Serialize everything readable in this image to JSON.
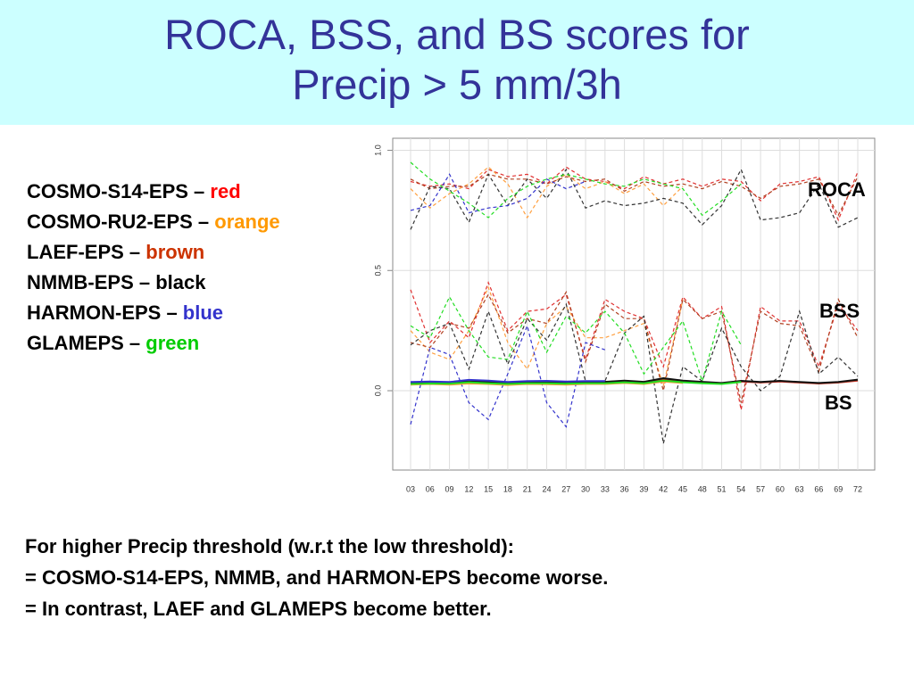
{
  "title": [
    "ROCA, BSS, and BS scores for",
    "Precip > 5 mm/3h"
  ],
  "legend": [
    {
      "label": "COSMO-S14-EPS – ",
      "color_word": "red",
      "color": "#ff0000"
    },
    {
      "label": "COSMO-RU2-EPS – ",
      "color_word": "orange",
      "color": "#ff9900"
    },
    {
      "label": "LAEF-EPS – ",
      "color_word": "brown",
      "color": "#cc3300"
    },
    {
      "label": "NMMB-EPS – black",
      "color_word": "",
      "color": "#000000"
    },
    {
      "label": "HARMON-EPS – ",
      "color_word": "blue",
      "color": "#3333cc"
    },
    {
      "label": "GLAMEPS – ",
      "color_word": "green",
      "color": "#00cc00"
    }
  ],
  "notes": [
    "For higher Precip threshold (w.r.t the low threshold):",
    "= COSMO-S14-EPS, NMMB, and HARMON-EPS become worse.",
    "= In contrast, LAEF and GLAMEPS become better."
  ],
  "chart_data": {
    "type": "line",
    "categories": [
      "03",
      "06",
      "09",
      "12",
      "15",
      "18",
      "21",
      "24",
      "27",
      "30",
      "33",
      "36",
      "39",
      "42",
      "45",
      "48",
      "51",
      "54",
      "57",
      "60",
      "63",
      "66",
      "69",
      "72"
    ],
    "ylim": [
      -0.33,
      1.05
    ],
    "yticks": [
      {
        "value": 0,
        "label": "0.0"
      },
      {
        "value": 0.5,
        "label": "0.5"
      },
      {
        "value": 1,
        "label": "1.0"
      }
    ],
    "grid": true,
    "groups": [
      {
        "label": "ROCA",
        "dashed": true,
        "series": [
          {
            "color": "#e03030",
            "values": [
              0.87,
              0.85,
              0.86,
              0.84,
              0.92,
              0.89,
              0.9,
              0.86,
              0.93,
              0.88,
              0.87,
              0.84,
              0.89,
              0.86,
              0.88,
              0.85,
              0.88,
              0.87,
              0.79,
              0.86,
              0.87,
              0.89,
              0.71,
              0.91
            ]
          },
          {
            "color": "#ffa040",
            "values": [
              0.84,
              0.76,
              0.82,
              0.86,
              0.93,
              0.86,
              0.72,
              0.85,
              0.9,
              0.84,
              0.87,
              0.82,
              0.86,
              0.77,
              0.85,
              null,
              null,
              null,
              null,
              null,
              null,
              null,
              null,
              null
            ]
          },
          {
            "color": "#b04020",
            "values": [
              0.88,
              0.84,
              0.85,
              0.85,
              0.9,
              0.88,
              0.88,
              0.86,
              0.89,
              0.87,
              0.88,
              0.83,
              0.87,
              0.85,
              0.86,
              0.84,
              0.87,
              0.85,
              0.8,
              0.85,
              0.86,
              0.88,
              0.73,
              0.89
            ]
          },
          {
            "color": "#333333",
            "values": [
              0.67,
              0.85,
              0.84,
              0.7,
              0.9,
              0.77,
              0.88,
              0.8,
              0.92,
              0.76,
              0.79,
              0.77,
              0.78,
              0.8,
              0.78,
              0.69,
              0.77,
              0.92,
              0.71,
              0.72,
              0.74,
              0.86,
              0.68,
              0.72
            ]
          },
          {
            "color": "#3333cc",
            "values": [
              0.75,
              0.77,
              0.9,
              0.74,
              0.76,
              0.77,
              0.8,
              0.88,
              0.84,
              0.87,
              null,
              null,
              null,
              null,
              null,
              null,
              null,
              null,
              null,
              null,
              null,
              null,
              null,
              null
            ]
          },
          {
            "color": "#22dd22",
            "values": [
              0.95,
              0.88,
              0.83,
              0.78,
              0.72,
              0.8,
              0.85,
              0.88,
              0.9,
              0.88,
              0.86,
              0.85,
              0.88,
              0.86,
              0.84,
              0.73,
              0.79,
              0.86,
              null,
              null,
              null,
              null,
              null,
              null
            ]
          }
        ]
      },
      {
        "label": "BSS",
        "dashed": true,
        "series": [
          {
            "color": "#e03030",
            "values": [
              0.42,
              0.2,
              0.29,
              0.22,
              0.45,
              0.25,
              0.33,
              0.34,
              0.4,
              0.13,
              0.38,
              0.33,
              0.3,
              0.1,
              0.39,
              0.3,
              0.35,
              -0.08,
              0.35,
              0.29,
              0.29,
              0.1,
              0.36,
              0.25
            ]
          },
          {
            "color": "#ffa040",
            "values": [
              0.25,
              0.16,
              0.13,
              0.25,
              0.43,
              0.2,
              0.09,
              0.28,
              0.35,
              0.22,
              0.22,
              0.25,
              0.28,
              0.02,
              0.38,
              null,
              null,
              null,
              null,
              null,
              null,
              null,
              null,
              null
            ]
          },
          {
            "color": "#b04020",
            "values": [
              0.2,
              0.18,
              0.28,
              0.26,
              0.4,
              0.24,
              0.3,
              0.28,
              0.41,
              0.12,
              0.36,
              0.3,
              0.3,
              0.0,
              0.38,
              0.3,
              0.33,
              -0.05,
              0.33,
              0.28,
              0.27,
              0.08,
              0.38,
              0.22
            ]
          },
          {
            "color": "#333333",
            "values": [
              0.19,
              0.25,
              0.28,
              0.09,
              0.33,
              0.11,
              0.3,
              0.21,
              0.36,
              0.04,
              0.04,
              0.24,
              0.31,
              -0.22,
              0.1,
              0.04,
              0.26,
              0.1,
              0.0,
              0.06,
              0.33,
              0.07,
              0.14,
              0.06
            ]
          },
          {
            "color": "#3333cc",
            "values": [
              -0.14,
              0.18,
              0.15,
              -0.05,
              -0.12,
              0.07,
              0.27,
              -0.05,
              -0.15,
              0.2,
              0.17,
              null,
              null,
              null,
              null,
              null,
              null,
              null,
              null,
              null,
              null,
              null,
              null,
              null
            ]
          },
          {
            "color": "#22dd22",
            "values": [
              0.27,
              0.22,
              0.39,
              0.25,
              0.14,
              0.13,
              0.33,
              0.16,
              0.31,
              0.24,
              0.33,
              0.24,
              0.07,
              0.18,
              0.29,
              0.04,
              0.33,
              0.19,
              null,
              null,
              null,
              null,
              null,
              null
            ]
          }
        ]
      },
      {
        "label": "BS",
        "dashed": false,
        "series": [
          {
            "color": "#e03030",
            "values": [
              0.03,
              0.032,
              0.03,
              0.038,
              0.034,
              0.03,
              0.033,
              0.034,
              0.031,
              0.034,
              0.034,
              0.038,
              0.034,
              0.045,
              0.038,
              0.034,
              0.03,
              0.038,
              0.034,
              0.038,
              0.034,
              0.03,
              0.034,
              0.042
            ]
          },
          {
            "color": "#ffa040",
            "values": [
              0.025,
              0.028,
              0.025,
              0.03,
              0.028,
              0.024,
              0.028,
              0.027,
              0.025,
              0.028,
              0.028,
              0.032,
              0.028,
              0.038,
              0.032,
              null,
              null,
              null,
              null,
              null,
              null,
              null,
              null,
              null
            ]
          },
          {
            "color": "#b04020",
            "values": [
              0.032,
              0.034,
              0.031,
              0.04,
              0.036,
              0.031,
              0.035,
              0.035,
              0.032,
              0.035,
              0.036,
              0.04,
              0.035,
              0.048,
              0.04,
              0.035,
              0.031,
              0.04,
              0.035,
              0.04,
              0.035,
              0.031,
              0.035,
              0.044
            ]
          },
          {
            "color": "#111111",
            "values": [
              0.034,
              0.036,
              0.033,
              0.042,
              0.037,
              0.033,
              0.036,
              0.037,
              0.034,
              0.037,
              0.037,
              0.042,
              0.037,
              0.052,
              0.042,
              0.037,
              0.032,
              0.041,
              0.036,
              0.041,
              0.036,
              0.032,
              0.036,
              0.046
            ]
          },
          {
            "color": "#3333cc",
            "values": [
              0.036,
              0.038,
              0.036,
              0.045,
              0.042,
              0.036,
              0.04,
              0.041,
              0.038,
              0.04,
              0.04,
              null,
              null,
              null,
              null,
              null,
              null,
              null,
              null,
              null,
              null,
              null,
              null,
              null
            ]
          },
          {
            "color": "#22dd22",
            "values": [
              0.028,
              0.03,
              0.029,
              0.035,
              0.031,
              0.028,
              0.031,
              0.031,
              0.029,
              0.031,
              0.031,
              0.035,
              0.031,
              0.042,
              0.035,
              0.031,
              0.028,
              0.036,
              null,
              null,
              null,
              null,
              null,
              null
            ]
          }
        ]
      }
    ]
  }
}
